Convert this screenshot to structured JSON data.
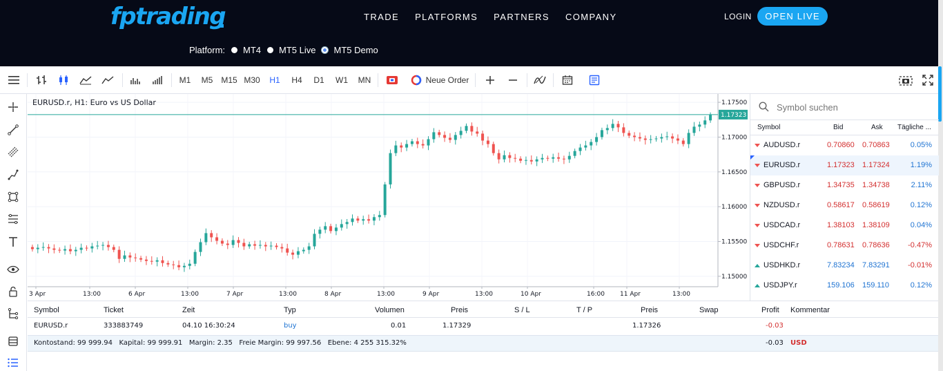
{
  "header": {
    "logo": "fptrading",
    "nav": [
      "TRADE",
      "PLATFORMS",
      "PARTNERS",
      "COMPANY"
    ],
    "login": "LOGIN",
    "open_live": "OPEN LIVE",
    "platform_label": "Platform:",
    "platforms": [
      {
        "label": "MT4",
        "selected": false
      },
      {
        "label": "MT5 Live",
        "selected": false
      },
      {
        "label": "MT5 Demo",
        "selected": true
      }
    ]
  },
  "toolbar": {
    "timeframes": [
      "M1",
      "M5",
      "M15",
      "M30",
      "H1",
      "H4",
      "D1",
      "W1",
      "MN"
    ],
    "active_timeframe": "H1",
    "new_order": "Neue Order",
    "icons": [
      "menu-icon",
      "bar-chart-icon",
      "candle-chart-icon",
      "area-chart-icon",
      "line-chart-icon",
      "volume-icon",
      "tick-volume-icon",
      "one-click-icon",
      "new-order-icon",
      "zoom-in-icon",
      "zoom-out-icon",
      "indicator-icon",
      "calendar-icon",
      "notes-icon",
      "screenshot-icon",
      "fullscreen-icon"
    ]
  },
  "chart": {
    "title": "EURUSD.r, H1: Euro vs US Dollar",
    "price_labels": [
      "1.17500",
      "1.17000",
      "1.16500",
      "1.16000",
      "1.15500",
      "1.15000"
    ],
    "current_price": "1.17323",
    "time_labels": [
      "3 Apr",
      "13:00",
      "6 Apr",
      "13:00",
      "7 Apr",
      "13:00",
      "8 Apr",
      "13:00",
      "9 Apr",
      "13:00",
      "10 Apr",
      "16:00",
      "11 Apr",
      "13:00"
    ],
    "up_color": "#26a69a",
    "down_color": "#ef5350"
  },
  "chart_data": {
    "type": "candlestick",
    "title": "EURUSD.r, H1: Euro vs US Dollar",
    "ylim": [
      1.1485,
      1.1762
    ],
    "current": 1.17323,
    "x_ticks": [
      "3 Apr",
      "13:00",
      "6 Apr",
      "13:00",
      "7 Apr",
      "13:00",
      "8 Apr",
      "13:00",
      "9 Apr",
      "13:00",
      "10 Apr",
      "16:00",
      "11 Apr",
      "13:00"
    ],
    "closes": [
      1.1539,
      1.1541,
      1.1542,
      1.154,
      1.1538,
      1.1537,
      1.1539,
      1.1536,
      1.1538,
      1.1541,
      1.154,
      1.1543,
      1.1544,
      1.1545,
      1.1542,
      1.1538,
      1.1525,
      1.153,
      1.1527,
      1.1526,
      1.1524,
      1.1522,
      1.1521,
      1.1523,
      1.1519,
      1.1517,
      1.1516,
      1.1513,
      1.1515,
      1.1518,
      1.1535,
      1.1549,
      1.1562,
      1.1556,
      1.1551,
      1.1547,
      1.1545,
      1.1552,
      1.1548,
      1.1543,
      1.1546,
      1.1544,
      1.1545,
      1.1543,
      1.1544,
      1.1542,
      1.154,
      1.1534,
      1.1531,
      1.1536,
      1.1538,
      1.1543,
      1.1561,
      1.1567,
      1.1572,
      1.1565,
      1.157,
      1.1575,
      1.1578,
      1.1583,
      1.158,
      1.1582,
      1.158,
      1.1585,
      1.1588,
      1.1632,
      1.1677,
      1.1688,
      1.1685,
      1.169,
      1.1694,
      1.169,
      1.1688,
      1.1697,
      1.1707,
      1.1703,
      1.1699,
      1.1696,
      1.1703,
      1.1709,
      1.1716,
      1.1708,
      1.1705,
      1.1695,
      1.169,
      1.1677,
      1.1668,
      1.1674,
      1.167,
      1.1669,
      1.1666,
      1.1667,
      1.1665,
      1.1668,
      1.167,
      1.1669,
      1.1671,
      1.1669,
      1.1668,
      1.1673,
      1.168,
      1.1685,
      1.1688,
      1.1693,
      1.17,
      1.171,
      1.1713,
      1.1719,
      1.1714,
      1.1706,
      1.1702,
      1.17,
      1.1698,
      1.1696,
      1.1697,
      1.1698,
      1.17,
      1.1701,
      1.1698,
      1.1695,
      1.169,
      1.1706,
      1.1715,
      1.1718,
      1.1724,
      1.1732
    ]
  },
  "symbols": {
    "search_placeholder": "Symbol suchen",
    "columns": [
      "Symbol",
      "Bid",
      "Ask",
      "Tägliche ..."
    ],
    "rows": [
      {
        "symbol": "AUDUSD.r",
        "bid": "0.70860",
        "ask": "0.70863",
        "change": "0.05%",
        "dir": "down",
        "bid_color": "#d32f2f",
        "change_color": "#1e73d2"
      },
      {
        "symbol": "EURUSD.r",
        "bid": "1.17323",
        "ask": "1.17324",
        "change": "1.19%",
        "dir": "down",
        "bid_color": "#d32f2f",
        "change_color": "#1e73d2"
      },
      {
        "symbol": "GBPUSD.r",
        "bid": "1.34735",
        "ask": "1.34738",
        "change": "2.11%",
        "dir": "down",
        "bid_color": "#d32f2f",
        "change_color": "#1e73d2"
      },
      {
        "symbol": "NZDUSD.r",
        "bid": "0.58617",
        "ask": "0.58619",
        "change": "0.12%",
        "dir": "down",
        "bid_color": "#d32f2f",
        "change_color": "#1e73d2"
      },
      {
        "symbol": "USDCAD.r",
        "bid": "1.38103",
        "ask": "1.38109",
        "change": "0.04%",
        "dir": "down",
        "bid_color": "#d32f2f",
        "change_color": "#1e73d2"
      },
      {
        "symbol": "USDCHF.r",
        "bid": "0.78631",
        "ask": "0.78636",
        "change": "-0.47%",
        "dir": "down",
        "bid_color": "#d32f2f",
        "change_color": "#d32f2f"
      },
      {
        "symbol": "USDHKD.r",
        "bid": "7.83234",
        "ask": "7.83291",
        "change": "-0.01%",
        "dir": "up",
        "bid_color": "#1e73d2",
        "change_color": "#d32f2f"
      },
      {
        "symbol": "USDJPY.r",
        "bid": "159.106",
        "ask": "159.110",
        "change": "0.12%",
        "dir": "up",
        "bid_color": "#1e73d2",
        "change_color": "#1e73d2"
      }
    ]
  },
  "trades": {
    "columns": [
      "Symbol",
      "Ticket",
      "Zeit",
      "Typ",
      "Volumen",
      "Preis",
      "S / L",
      "T / P",
      "Preis",
      "Swap",
      "Profit",
      "Kommentar"
    ],
    "row": {
      "symbol": "EURUSD.r",
      "ticket": "333883749",
      "time": "04.10 16:30:24",
      "type": "buy",
      "volume": "0.01",
      "price": "1.17329",
      "sl": "",
      "tp": "",
      "cur_price": "1.17326",
      "swap": "",
      "profit": "-0.03",
      "comment": ""
    },
    "summary": "Kontostand: 99 999.94   Kapital: 99 999.91   Margin: 2.35   Freie Margin: 99 997.56   Ebene: 4 255 315.32%",
    "total_profit": "-0.03",
    "currency": "USD"
  }
}
